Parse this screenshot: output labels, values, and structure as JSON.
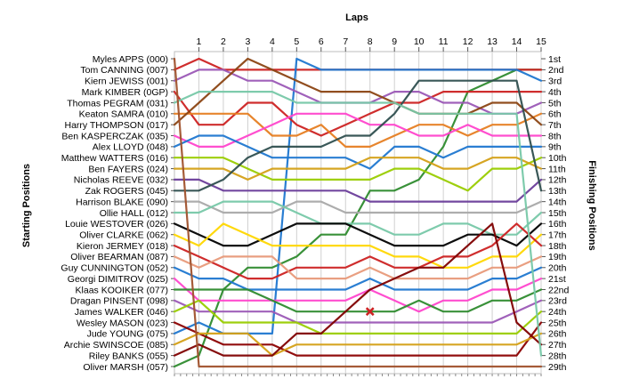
{
  "chart_data": {
    "type": "line",
    "title": "",
    "xlabel": "Laps",
    "ylabel_left": "Starting Positions",
    "ylabel_right": "Finishing Positions",
    "x": [
      0,
      1,
      2,
      3,
      4,
      5,
      6,
      7,
      8,
      9,
      10,
      11,
      12,
      13,
      14,
      15
    ],
    "x_tick_labels": [
      "1",
      "2",
      "3",
      "4",
      "5",
      "6",
      "7",
      "8",
      "9",
      "10",
      "11",
      "12",
      "13",
      "14",
      "15"
    ],
    "y_range": [
      1,
      29
    ],
    "drivers": [
      "Myles APPS (000)",
      "Tom CANNING (007)",
      "Kiern JEWISS (001)",
      "Mark KIMBER (0GP)",
      "Thomas PEGRAM (031)",
      "Keaton SAMRA (010)",
      "Harry THOMPSON (017)",
      "Ben KASPERCZAK (035)",
      "Alex LLOYD (048)",
      "Matthew WATTERS (016)",
      "Ben FAYERS (024)",
      "Nicholas REEVE (032)",
      "Zak ROGERS (045)",
      "Harrison BLAKE (090)",
      "Ollie HALL (012)",
      "Louie WESTOVER (026)",
      "Oliver CLARKE (062)",
      "Kieron JERMEY (018)",
      "Oliver BEARMAN (087)",
      "Guy CUNNINGTON (052)",
      "Georgi DIMITROV (025)",
      "Klaas KOOIKER (077)",
      "Dragan PINSENT (098)",
      "James WALKER (046)",
      "Wesley MASON (023)",
      "Jude YOUNG (075)",
      "Archie SWINSCOE (085)",
      "Riley BANKS (055)",
      "Oliver MARSH (057)"
    ],
    "finishing_labels": [
      "1st",
      "2nd",
      "3rd",
      "4th",
      "5th",
      "6th",
      "7th",
      "8th",
      "9th",
      "10th",
      "11th",
      "12th",
      "13th",
      "14th",
      "15th",
      "16th",
      "17th",
      "18th",
      "19th",
      "20th",
      "21st",
      "22nd",
      "23rd",
      "24th",
      "25th",
      "26th",
      "27th",
      "28th",
      "29th"
    ],
    "series": [
      {
        "color": "#2e8b2e",
        "positions": [
          29,
          28,
          22,
          20,
          20,
          19,
          17,
          17,
          13,
          13,
          12,
          9,
          4,
          3,
          2,
          2
        ]
      },
      {
        "color": "#cc2222",
        "positions": [
          2,
          1,
          2,
          2,
          2,
          2,
          2,
          2,
          2,
          2,
          2,
          2,
          2,
          2,
          2,
          2
        ]
      },
      {
        "color": "#1f77d0",
        "positions": [
          26,
          25,
          26,
          26,
          26,
          1,
          2,
          2,
          2,
          2,
          2,
          2,
          2,
          2,
          2,
          3
        ]
      },
      {
        "color": "#cc2222",
        "positions": [
          4,
          7,
          7,
          5,
          5,
          7,
          8,
          7,
          6,
          5,
          5,
          4,
          4,
          4,
          4,
          4
        ]
      },
      {
        "color": "#9b59b6",
        "positions": [
          3,
          2,
          2,
          3,
          3,
          4,
          5,
          5,
          5,
          4,
          4,
          5,
          5,
          6,
          6,
          5
        ]
      },
      {
        "color": "#e67e22",
        "positions": [
          6,
          6,
          6,
          6,
          8,
          8,
          7,
          9,
          9,
          8,
          7,
          7,
          8,
          7,
          7,
          6
        ]
      },
      {
        "color": "#8b4513",
        "positions": [
          7,
          5,
          3,
          1,
          2,
          3,
          4,
          4,
          4,
          5,
          6,
          6,
          6,
          5,
          5,
          7
        ]
      },
      {
        "color": "#ff44cc",
        "positions": [
          8,
          9,
          9,
          8,
          7,
          6,
          6,
          6,
          7,
          7,
          8,
          8,
          7,
          8,
          8,
          8
        ]
      },
      {
        "color": "#1f77d0",
        "positions": [
          9,
          8,
          8,
          9,
          10,
          10,
          10,
          10,
          11,
          9,
          9,
          10,
          9,
          9,
          9,
          9
        ]
      },
      {
        "color": "#99cc00",
        "positions": [
          10,
          10,
          10,
          11,
          12,
          12,
          12,
          12,
          12,
          11,
          11,
          12,
          13,
          11,
          11,
          10
        ]
      },
      {
        "color": "#d4a017",
        "positions": [
          11,
          11,
          11,
          12,
          11,
          11,
          11,
          11,
          10,
          10,
          10,
          11,
          11,
          10,
          10,
          11
        ]
      },
      {
        "color": "#6a3d9a",
        "positions": [
          12,
          12,
          13,
          13,
          13,
          13,
          13,
          13,
          14,
          14,
          14,
          14,
          14,
          14,
          14,
          12
        ]
      },
      {
        "color": "#2f4f4f",
        "positions": [
          13,
          13,
          12,
          10,
          9,
          9,
          9,
          8,
          8,
          6,
          3,
          3,
          3,
          3,
          3,
          13
        ]
      },
      {
        "color": "#a9a9a9",
        "positions": [
          14,
          14,
          15,
          15,
          15,
          14,
          14,
          15,
          15,
          15,
          15,
          15,
          15,
          15,
          15,
          14
        ]
      },
      {
        "color": "#77c8a8",
        "positions": [
          15,
          15,
          14,
          14,
          14,
          15,
          16,
          16,
          16,
          17,
          17,
          16,
          16,
          17,
          17,
          15
        ]
      },
      {
        "color": "#000000",
        "positions": [
          16,
          17,
          18,
          18,
          17,
          16,
          16,
          16,
          17,
          18,
          18,
          18,
          17,
          17,
          18,
          16
        ]
      },
      {
        "color": "#ffd700",
        "positions": [
          17,
          18,
          16,
          17,
          18,
          18,
          18,
          18,
          18,
          19,
          19,
          20,
          20,
          19,
          19,
          17
        ]
      },
      {
        "color": "#cc2222",
        "positions": [
          18,
          19,
          20,
          21,
          21,
          20,
          20,
          20,
          19,
          20,
          20,
          19,
          19,
          18,
          16,
          18
        ]
      },
      {
        "color": "#e89a7a",
        "positions": [
          19,
          20,
          19,
          19,
          19,
          21,
          21,
          21,
          20,
          21,
          21,
          21,
          21,
          20,
          20,
          19
        ]
      },
      {
        "color": "#1f77d0",
        "positions": [
          20,
          21,
          21,
          22,
          22,
          22,
          22,
          22,
          21,
          22,
          22,
          22,
          22,
          21,
          21,
          20
        ]
      },
      {
        "color": "#ff44cc",
        "positions": [
          21,
          23,
          23,
          23,
          23,
          23,
          23,
          23,
          22,
          23,
          24,
          23,
          23,
          22,
          22,
          21
        ]
      },
      {
        "color": "#2e8b2e",
        "positions": [
          22,
          22,
          22,
          22,
          23,
          24,
          24,
          24,
          24,
          24,
          23,
          24,
          24,
          23,
          23,
          22
        ]
      },
      {
        "color": "#9b59b6",
        "positions": [
          23,
          24,
          24,
          24,
          24,
          25,
          25,
          25,
          25,
          25,
          25,
          25,
          25,
          25,
          24,
          23
        ]
      },
      {
        "color": "#99cc00",
        "positions": [
          24,
          23,
          25,
          25,
          25,
          25,
          26,
          26,
          26,
          26,
          26,
          26,
          26,
          26,
          26,
          24
        ]
      },
      {
        "color": "#8b0000",
        "positions": [
          25,
          26,
          27,
          27,
          27,
          28,
          28,
          28,
          28,
          28,
          28,
          28,
          28,
          28,
          28,
          25
        ]
      },
      {
        "color": "#d4a017",
        "positions": [
          27,
          26,
          26,
          26,
          28,
          27,
          27,
          27,
          27,
          27,
          27,
          27,
          27,
          27,
          27,
          26
        ]
      },
      {
        "color": "#800000",
        "positions": [
          28,
          27,
          28,
          28,
          28,
          26,
          26,
          24,
          22,
          21,
          20,
          20,
          18,
          16,
          25,
          27
        ]
      },
      {
        "color": "#77c8a8",
        "positions": [
          5,
          4,
          4,
          4,
          4,
          5,
          5,
          5,
          5,
          5,
          6,
          6,
          6,
          6,
          6,
          28
        ]
      },
      {
        "color": "#a0522d",
        "positions": [
          1,
          29,
          29,
          29,
          29,
          29,
          29,
          29,
          29,
          29,
          29,
          29,
          29,
          29,
          29,
          29
        ]
      }
    ],
    "marker": {
      "type": "x",
      "color": "#cc2222",
      "x": 8,
      "position": 24
    },
    "grid": true
  }
}
